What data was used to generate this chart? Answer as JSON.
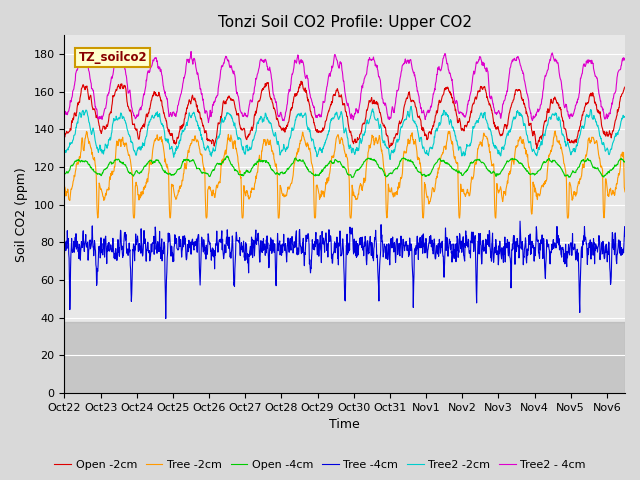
{
  "title": "Tonzi Soil CO2 Profile: Upper CO2",
  "ylabel": "Soil CO2 (ppm)",
  "xlabel": "Time",
  "legend_label": "TZ_soilco2",
  "ylim": [
    0,
    190
  ],
  "yticks": [
    0,
    20,
    40,
    60,
    80,
    100,
    120,
    140,
    160,
    180
  ],
  "xtick_labels": [
    "Oct 22",
    "Oct 23",
    "Oct 24",
    "Oct 25",
    "Oct 26",
    "Oct 27",
    "Oct 28",
    "Oct 29",
    "Oct 30",
    "Oct 31",
    "Nov 1",
    "Nov 2",
    "Nov 3",
    "Nov 4",
    "Nov 5",
    "Nov 6"
  ],
  "n_days": 15.5,
  "n_points": 1550,
  "fig_width": 6.4,
  "fig_height": 4.8,
  "dpi": 100,
  "bg_color": "#d9d9d9",
  "axes_bg": "#e8e8e8",
  "grid_color": "#ffffff",
  "title_fontsize": 11,
  "label_fontsize": 9,
  "tick_fontsize": 8,
  "legend_fontsize": 8,
  "linewidth": 0.8,
  "series": [
    {
      "label": "Open -2cm",
      "color": "#dd0000"
    },
    {
      "label": "Tree -2cm",
      "color": "#ff9900"
    },
    {
      "label": "Open -4cm",
      "color": "#00cc00"
    },
    {
      "label": "Tree -4cm",
      "color": "#0000dd"
    },
    {
      "label": "Tree2 -2cm",
      "color": "#00cccc"
    },
    {
      "label": "Tree2 - 4cm",
      "color": "#dd00cc"
    }
  ]
}
